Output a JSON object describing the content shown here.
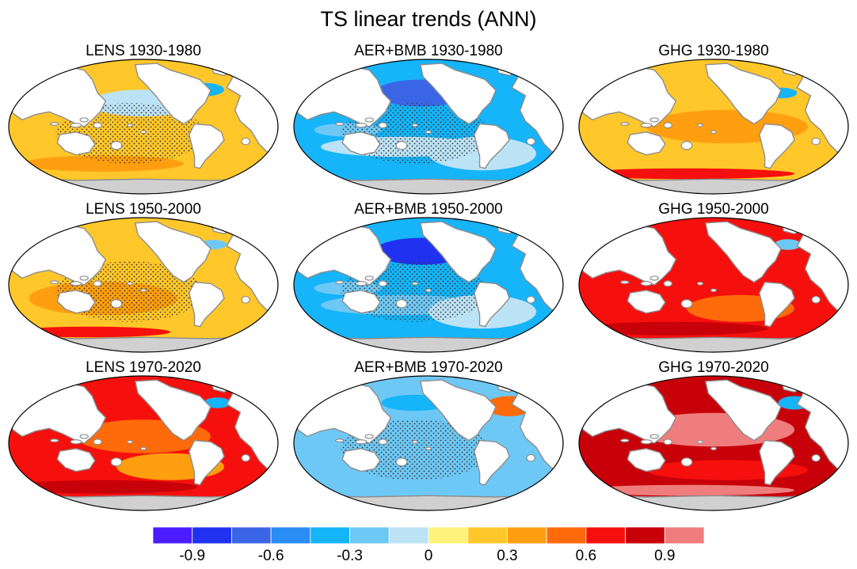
{
  "chart_data": {
    "type": "heatmap",
    "title": "TS linear trends (ANN)",
    "panels": [
      {
        "title": "LENS 1930-1980",
        "row": 0,
        "col": 0,
        "mean_trend": 0.15,
        "mode": "mixed",
        "stippled": true
      },
      {
        "title": "AER+BMB 1930-1980",
        "row": 0,
        "col": 1,
        "mean_trend": -0.35,
        "mode": "cool",
        "stippled": true
      },
      {
        "title": "GHG 1930-1980",
        "row": 0,
        "col": 2,
        "mean_trend": 0.25,
        "mode": "warm",
        "stippled": false
      },
      {
        "title": "LENS 1950-2000",
        "row": 1,
        "col": 0,
        "mean_trend": 0.2,
        "mode": "warm-lite",
        "stippled": true
      },
      {
        "title": "AER+BMB 1950-2000",
        "row": 1,
        "col": 1,
        "mean_trend": -0.4,
        "mode": "cool",
        "stippled": true
      },
      {
        "title": "GHG 1950-2000",
        "row": 1,
        "col": 2,
        "mean_trend": 0.65,
        "mode": "hot",
        "stippled": false
      },
      {
        "title": "LENS 1970-2020",
        "row": 2,
        "col": 0,
        "mean_trend": 0.6,
        "mode": "hot",
        "stippled": false
      },
      {
        "title": "AER+BMB 1970-2020",
        "row": 2,
        "col": 1,
        "mean_trend": -0.2,
        "mode": "cool-lite",
        "stippled": true
      },
      {
        "title": "GHG 1970-2020",
        "row": 2,
        "col": 2,
        "mean_trend": 0.8,
        "mode": "hotter",
        "stippled": false
      }
    ],
    "colorbar": {
      "levels": [
        -1.05,
        -0.9,
        -0.75,
        -0.6,
        -0.45,
        -0.3,
        -0.15,
        0,
        0.15,
        0.3,
        0.45,
        0.6,
        0.75,
        0.9,
        1.05
      ],
      "colors": [
        "#4b1cff",
        "#2032f0",
        "#3a66e6",
        "#2a8cf5",
        "#16b4f8",
        "#6ec8f5",
        "#bce2f5",
        "#fff27a",
        "#ffc72a",
        "#ff9f0f",
        "#ff6a0a",
        "#f5100e",
        "#c8000a",
        "#f07d7d"
      ],
      "tick_labels": [
        "-0.9",
        "-0.6",
        "-0.3",
        "0",
        "0.3",
        "0.6",
        "0.9"
      ],
      "tick_values": [
        -0.9,
        -0.6,
        -0.3,
        0,
        0.3,
        0.6,
        0.9
      ]
    },
    "land_color": "#ffffff",
    "ice_color": "#d0d0d0",
    "coast_color": "#8c8c8c"
  }
}
